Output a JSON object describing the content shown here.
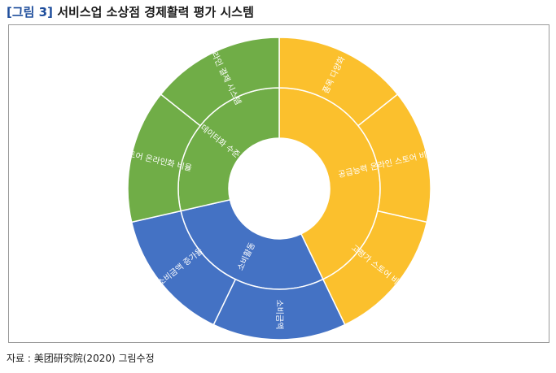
{
  "figure": {
    "tag": "[그림 3]",
    "title": "서비스업 소상점 경제활력 평가 시스템"
  },
  "source": "자료 : 美团研究院(2020) 그림수정",
  "chart_data": {
    "type": "sunburst",
    "title": "",
    "start_angle_deg": 0,
    "colors": {
      "supply": "#FBC02D",
      "data": "#70AD47",
      "consumption": "#4472C4",
      "center": "#FFFFFF",
      "stroke": "#FFFFFF"
    },
    "inner_ring": [
      {
        "label": "공급능력",
        "value": 3,
        "color_key": "supply"
      },
      {
        "label": "소비활동",
        "value": 2,
        "color_key": "consumption"
      },
      {
        "label": "데이터화 수준",
        "value": 2,
        "color_key": "data"
      }
    ],
    "outer_ring": [
      {
        "label": "품목 다양화",
        "parent": "공급능력",
        "value": 1
      },
      {
        "label": "온라인 스토어 비중",
        "parent": "공급능력",
        "value": 1
      },
      {
        "label": "고평가 스토어 비중",
        "parent": "공급능력",
        "value": 1
      },
      {
        "label": "소비금액",
        "parent": "소비활동",
        "value": 1
      },
      {
        "label": "소비금액 증가율",
        "parent": "소비활동",
        "value": 1
      },
      {
        "label": "스토어 온라인화 비율",
        "parent": "데이터화 수준",
        "value": 1
      },
      {
        "label": "온라인 결제 시스템",
        "parent": "데이터화 수준",
        "value": 1
      }
    ]
  }
}
